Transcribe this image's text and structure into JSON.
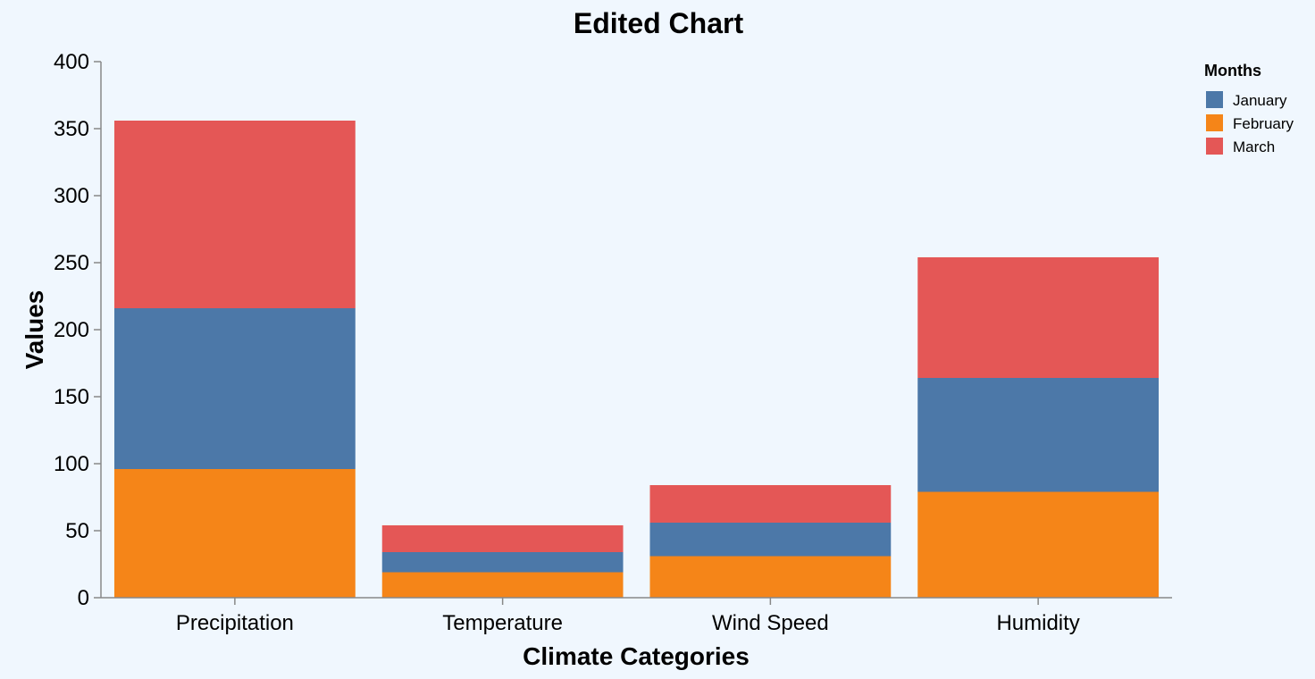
{
  "chart_data": {
    "type": "bar",
    "stacked": true,
    "title": "Edited Chart",
    "xlabel": "Climate Categories",
    "ylabel": "Values",
    "ylim": [
      0,
      400
    ],
    "yticks": [
      "0",
      "50",
      "100",
      "150",
      "200",
      "250",
      "300",
      "350",
      "400"
    ],
    "categories": [
      "Precipitation",
      "Temperature",
      "Wind Speed",
      "Humidity"
    ],
    "legend": {
      "title": "Months",
      "position": "top-right"
    },
    "grid": false,
    "series": [
      {
        "name": "February",
        "color": "#f58518",
        "values": [
          96,
          19,
          31,
          79
        ]
      },
      {
        "name": "January",
        "color": "#4c78a8",
        "values": [
          120,
          15,
          25,
          85
        ]
      },
      {
        "name": "March",
        "color": "#e45756",
        "values": [
          140,
          20,
          28,
          90
        ]
      }
    ],
    "legend_order": [
      "January",
      "February",
      "March"
    ]
  }
}
